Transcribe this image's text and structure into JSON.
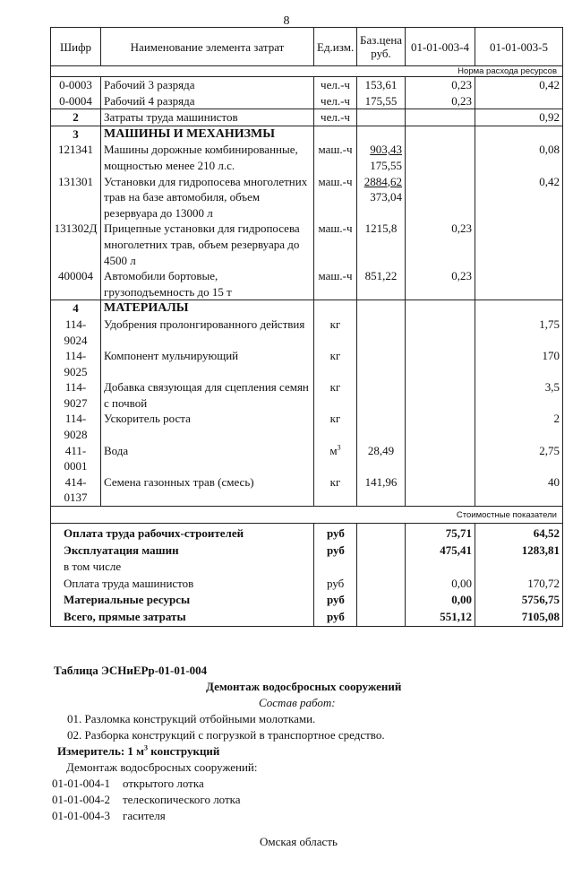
{
  "page_number": "8",
  "table": {
    "headers": [
      "Шифр",
      "Наименование элемента затрат",
      "Ед.изм.",
      "Баз.цена руб.",
      "01-01-003-4",
      "01-01-003-5"
    ],
    "norm_caption": "Норма расхода ресурсов",
    "groups": [
      [
        {
          "code": "0-0003",
          "name": "Рабочий 3 разряда",
          "unit": "чел.-ч",
          "price": "153,61",
          "c4": "0,23",
          "c5": "0,42"
        },
        {
          "code": "0-0004",
          "name": "Рабочий 4 разряда",
          "unit": "чел.-ч",
          "price": "175,55",
          "c4": "0,23",
          "c5": ""
        }
      ],
      [
        {
          "code": "2",
          "name": "Затраты труда машинистов",
          "unit": "чел.-ч",
          "price": "",
          "c4": "",
          "c5": "0,92",
          "bold_code": true
        }
      ],
      [
        {
          "code": "3",
          "name": "МАШИНЫ И МЕХАНИЗМЫ",
          "unit": "",
          "price": "",
          "c4": "",
          "c5": "",
          "bold_code": true,
          "bold_name": true
        },
        {
          "code": "121341",
          "name": "Машины дорожные комбинированные, мощностью менее 210 л.с.",
          "unit": "маш.-ч",
          "price": "903,43",
          "price2": "175,55",
          "c4": "",
          "c5": "0,08"
        },
        {
          "code": "131301",
          "name": "Установки для гидропосева многолетних трав на базе автомобиля, объем резервуара до 13000 л",
          "unit": "маш.-ч",
          "price": "2884,62",
          "price2": "373,04",
          "c4": "",
          "c5": "0,42"
        },
        {
          "code": "131302Д",
          "name": "Прицепные установки для гидропосева многолетних трав, объем резервуара до 4500 л",
          "unit": "маш.-ч",
          "price": "1215,8",
          "c4": "0,23",
          "c5": ""
        },
        {
          "code": "400004",
          "name": "Автомобили бортовые, грузоподъемность до 15 т",
          "unit": "маш.-ч",
          "price": "851,22",
          "c4": "0,23",
          "c5": ""
        }
      ],
      [
        {
          "code": "4",
          "name": "МАТЕРИАЛЫ",
          "unit": "",
          "price": "",
          "c4": "",
          "c5": "",
          "bold_code": true,
          "bold_name": true
        },
        {
          "code": "114-9024",
          "name": "Удобрения пролонгированного действия",
          "unit": "кг",
          "price": "",
          "c4": "",
          "c5": "1,75"
        },
        {
          "code": "114-9025",
          "name": "Компонент мульчирующий",
          "unit": "кг",
          "price": "",
          "c4": "",
          "c5": "170"
        },
        {
          "code": "114-9027",
          "name": "Добавка связующая для сцепления семян с почвой",
          "unit": "кг",
          "price": "",
          "c4": "",
          "c5": "3,5"
        },
        {
          "code": "114-9028",
          "name": "Ускоритель роста",
          "unit": "кг",
          "price": "",
          "c4": "",
          "c5": "2"
        },
        {
          "code": "411-0001",
          "name": "Вода",
          "unit": "м",
          "unit_sup": "3",
          "price": "28,49",
          "c4": "",
          "c5": "2,75"
        },
        {
          "code": "414-0137",
          "name": "Семена газонных трав (смесь)",
          "unit": "кг",
          "price": "141,96",
          "c4": "",
          "c5": "40"
        }
      ]
    ],
    "cost_caption": "Стоимостные показатели",
    "cost_rows": [
      {
        "name": "Оплата труда рабочих-строителей",
        "unit": "руб",
        "c4": "75,71",
        "c5": "64,52",
        "bold": true
      },
      {
        "name": "Эксплуатация машин",
        "unit": "руб",
        "c4": "475,41",
        "c5": "1283,81",
        "bold": true
      },
      {
        "name": "в том числе",
        "unit": "",
        "c4": "",
        "c5": "",
        "bold": false
      },
      {
        "name": "Оплата труда машинистов",
        "unit": "руб",
        "c4": "0,00",
        "c5": "170,72",
        "bold": false
      },
      {
        "name": "Материальные ресурсы",
        "unit": "руб",
        "c4": "0,00",
        "c5": "5756,75",
        "bold": true
      },
      {
        "name": "Всего, прямые затраты",
        "unit": "руб",
        "c4": "551,12",
        "c5": "7105,08",
        "bold": true
      }
    ]
  },
  "section": {
    "table_title": "Таблица  ЭСНиЕРр-01-01-004",
    "heading": "Демонтаж водосбросных сооружений",
    "composition_label": "Состав работ:",
    "steps": [
      "01. Разломка конструкций отбойными молотками.",
      "02. Разборка конструкций с погрузкой в транспортное средство."
    ],
    "meter_label": "Измеритель: 1 м",
    "meter_sup": "3",
    "meter_rest": " конструкций",
    "list_intro": "Демонтаж водосбросных сооружений:",
    "items": [
      {
        "code": "01-01-004-1",
        "label": "открытого лотка"
      },
      {
        "code": "01-01-004-2",
        "label": "телескопического лотка"
      },
      {
        "code": "01-01-004-3",
        "label": "гасителя"
      }
    ],
    "footer": "Омская область"
  }
}
